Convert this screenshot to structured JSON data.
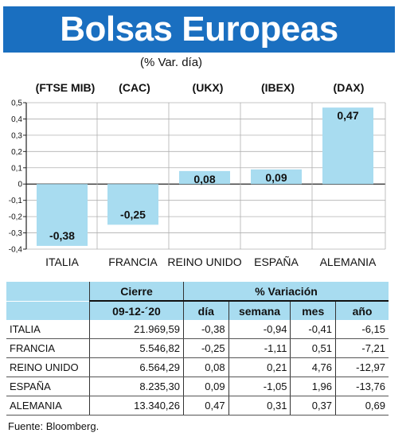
{
  "header": {
    "title": "Bolsas Europeas",
    "subtitle": "(% Var. día)"
  },
  "chart_data": {
    "type": "bar",
    "categories": [
      "ITALIA",
      "FRANCIA",
      "REINO UNIDO",
      "ESPAÑA",
      "ALEMANIA"
    ],
    "codes": [
      "(FTSE MIB)",
      "(CAC)",
      "(UKX)",
      "(IBEX)",
      "(DAX)"
    ],
    "values": [
      -0.38,
      -0.25,
      0.08,
      0.09,
      0.47
    ],
    "value_labels": [
      "-0,38",
      "-0,25",
      "0,08",
      "0,09",
      "0,47"
    ],
    "ylim": [
      -0.4,
      0.5
    ],
    "yticks": [
      0.5,
      0.4,
      0.3,
      0.2,
      0.1,
      0,
      -0.1,
      -0.2,
      -0.3,
      -0.4
    ],
    "ytick_labels": [
      "0,5",
      "0,4",
      "0,3",
      "0,2",
      "0,1",
      "0",
      "-0,1",
      "-0,2",
      "-0,3",
      "-0,4"
    ],
    "grid": true,
    "bar_color": "#a8dcf0"
  },
  "table": {
    "header_cierre": "Cierre",
    "header_variacion": "% Variación",
    "date": "09-12-´20",
    "columns": [
      "día",
      "semana",
      "mes",
      "año"
    ],
    "rows": [
      {
        "name": "ITALIA",
        "close": "21.969,59",
        "dia": "-0,38",
        "semana": "-0,94",
        "mes": "-0,41",
        "ano": "-6,15"
      },
      {
        "name": "FRANCIA",
        "close": "5.546,82",
        "dia": "-0,25",
        "semana": "-1,11",
        "mes": "0,51",
        "ano": "-7,21"
      },
      {
        "name": "REINO UNIDO",
        "close": "6.564,29",
        "dia": "0,08",
        "semana": "0,21",
        "mes": "4,76",
        "ano": "-12,97"
      },
      {
        "name": "ESPAÑA",
        "close": "8.235,30",
        "dia": "0,09",
        "semana": "-1,05",
        "mes": "1,96",
        "ano": "-13,76"
      },
      {
        "name": "ALEMANIA",
        "close": "13.340,26",
        "dia": "0,47",
        "semana": "0,31",
        "mes": "0,37",
        "ano": "0,69"
      }
    ]
  },
  "source": "Fuente: Bloomberg."
}
